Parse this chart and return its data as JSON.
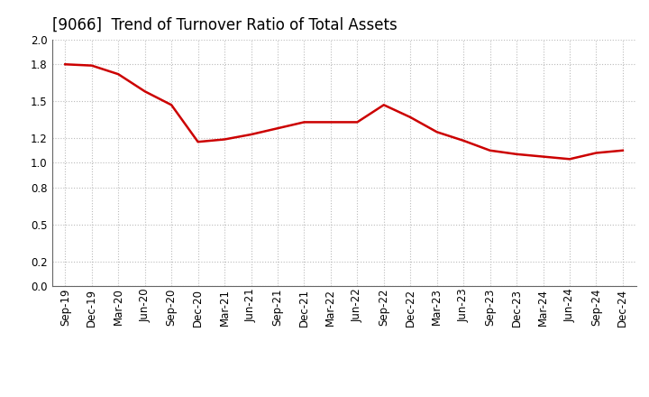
{
  "title": "[9066]  Trend of Turnover Ratio of Total Assets",
  "x_labels": [
    "Sep-19",
    "Dec-19",
    "Mar-20",
    "Jun-20",
    "Sep-20",
    "Dec-20",
    "Mar-21",
    "Jun-21",
    "Sep-21",
    "Dec-21",
    "Mar-22",
    "Jun-22",
    "Sep-22",
    "Dec-22",
    "Mar-23",
    "Jun-23",
    "Sep-23",
    "Dec-23",
    "Mar-24",
    "Jun-24",
    "Sep-24",
    "Dec-24"
  ],
  "y_values": [
    1.8,
    1.79,
    1.72,
    1.58,
    1.47,
    1.17,
    1.19,
    1.23,
    1.28,
    1.33,
    1.33,
    1.33,
    1.47,
    1.37,
    1.25,
    1.18,
    1.1,
    1.07,
    1.05,
    1.03,
    1.08,
    1.1
  ],
  "line_color": "#cc0000",
  "line_width": 1.8,
  "ylim": [
    0.0,
    2.0
  ],
  "yticks": [
    0.0,
    0.2,
    0.5,
    0.8,
    1.0,
    1.2,
    1.5,
    1.8,
    2.0
  ],
  "background_color": "#ffffff",
  "grid_color": "#bbbbbb",
  "title_fontsize": 12,
  "tick_fontsize": 8.5
}
